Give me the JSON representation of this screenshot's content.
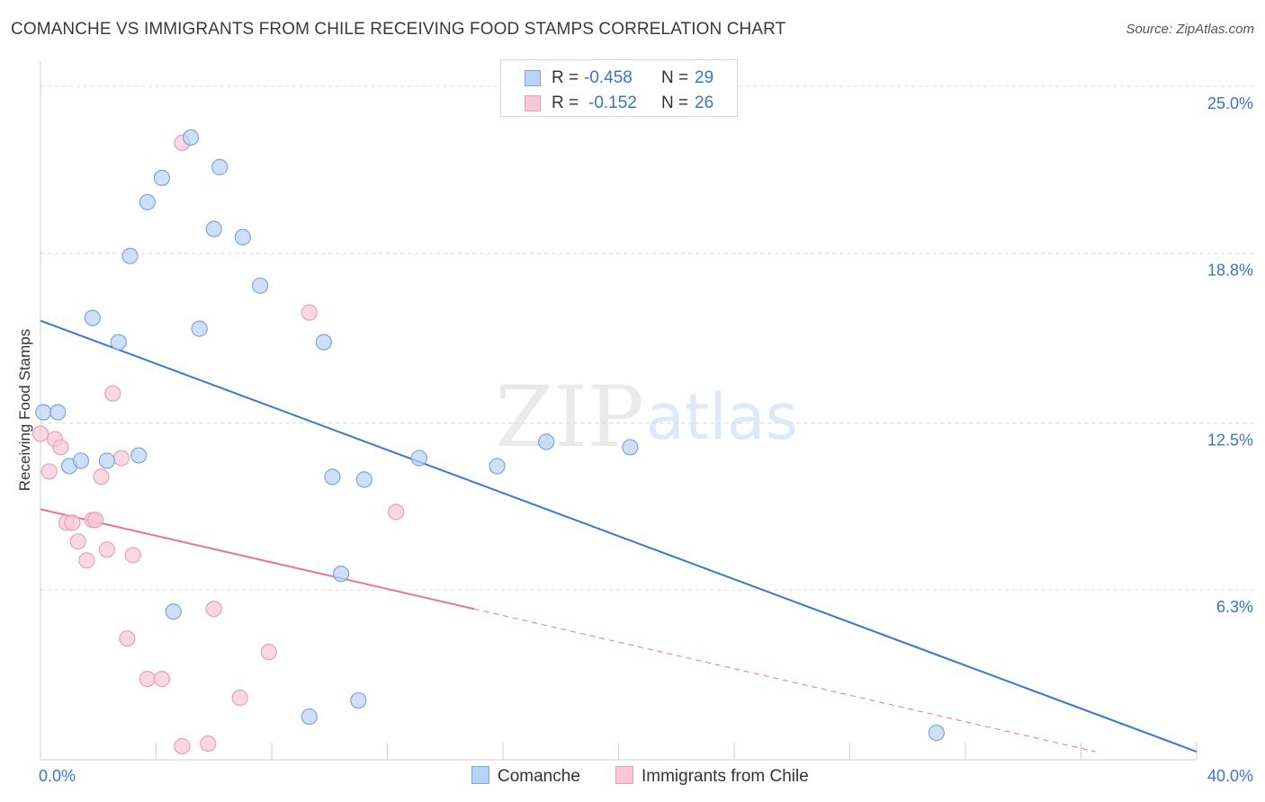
{
  "header": {
    "title": "COMANCHE VS IMMIGRANTS FROM CHILE RECEIVING FOOD STAMPS CORRELATION CHART",
    "source": "Source: ZipAtlas.com"
  },
  "watermark": {
    "zip": "ZIP",
    "atlas": "atlas"
  },
  "legend": {
    "items": [
      {
        "r_label": "R =",
        "r_value": "-0.458",
        "n_label": "N =",
        "n_value": "29"
      },
      {
        "r_label": "R =",
        "r_value": "-0.152",
        "n_label": "N =",
        "n_value": "26"
      }
    ]
  },
  "bottom_legend": {
    "series_a": "Comanche",
    "series_b": "Immigrants from Chile"
  },
  "colors": {
    "comanche_fill": "#b8d3f5",
    "comanche_stroke": "#7aa6de",
    "comanche_line": "#3a78d4",
    "chile_fill": "#f8c7d6",
    "chile_stroke": "#eba0b8",
    "chile_line": "#e8739a",
    "tick_label": "#3a74c8",
    "grid": "#dcdcdc"
  },
  "chart_data": {
    "type": "scatter",
    "title": "COMANCHE VS IMMIGRANTS FROM CHILE RECEIVING FOOD STAMPS CORRELATION CHART",
    "xlabel": "",
    "ylabel": "Receiving Food Stamps",
    "xlim": [
      0,
      40
    ],
    "ylim": [
      0,
      25.6
    ],
    "x_tick_labels": [
      {
        "value": 0,
        "label": "0.0%"
      },
      {
        "value": 40,
        "label": "40.0%"
      }
    ],
    "y_ticks": [
      {
        "value": 6.3,
        "label": "6.3%"
      },
      {
        "value": 12.5,
        "label": "12.5%"
      },
      {
        "value": 18.8,
        "label": "18.8%"
      },
      {
        "value": 25.0,
        "label": "25.0%"
      }
    ],
    "grid": true,
    "legend_position": "top-center",
    "series": [
      {
        "name": "Comanche",
        "r": -0.458,
        "n": 29,
        "points": [
          [
            0.1,
            12.9
          ],
          [
            0.6,
            12.9
          ],
          [
            1.0,
            10.9
          ],
          [
            1.4,
            11.1
          ],
          [
            1.8,
            16.4
          ],
          [
            2.3,
            11.1
          ],
          [
            2.7,
            15.5
          ],
          [
            3.1,
            18.7
          ],
          [
            3.4,
            11.3
          ],
          [
            3.7,
            20.7
          ],
          [
            4.2,
            21.6
          ],
          [
            4.6,
            5.5
          ],
          [
            5.2,
            23.1
          ],
          [
            5.5,
            16.0
          ],
          [
            6.0,
            19.7
          ],
          [
            6.2,
            22.0
          ],
          [
            7.0,
            19.4
          ],
          [
            7.6,
            17.6
          ],
          [
            9.3,
            1.6
          ],
          [
            9.8,
            15.5
          ],
          [
            10.1,
            10.5
          ],
          [
            10.4,
            6.9
          ],
          [
            11.0,
            2.2
          ],
          [
            11.2,
            10.4
          ],
          [
            13.1,
            11.2
          ],
          [
            15.8,
            10.9
          ],
          [
            17.5,
            11.8
          ],
          [
            20.4,
            11.6
          ],
          [
            31.0,
            1.0
          ]
        ],
        "trend": {
          "x": [
            0,
            40
          ],
          "y": [
            16.3,
            0.3
          ]
        }
      },
      {
        "name": "Immigrants from Chile",
        "r": -0.152,
        "n": 26,
        "points": [
          [
            0.0,
            12.1
          ],
          [
            0.3,
            10.7
          ],
          [
            0.5,
            11.9
          ],
          [
            0.7,
            11.6
          ],
          [
            0.9,
            8.8
          ],
          [
            1.1,
            8.8
          ],
          [
            1.3,
            8.1
          ],
          [
            1.6,
            7.4
          ],
          [
            1.8,
            8.9
          ],
          [
            1.9,
            8.9
          ],
          [
            2.1,
            10.5
          ],
          [
            2.3,
            7.8
          ],
          [
            2.5,
            13.6
          ],
          [
            2.8,
            11.2
          ],
          [
            3.0,
            4.5
          ],
          [
            3.2,
            7.6
          ],
          [
            3.7,
            3.0
          ],
          [
            4.2,
            3.0
          ],
          [
            4.9,
            0.5
          ],
          [
            4.9,
            22.9
          ],
          [
            5.8,
            0.6
          ],
          [
            6.0,
            5.6
          ],
          [
            6.9,
            2.3
          ],
          [
            7.9,
            4.0
          ],
          [
            9.3,
            16.6
          ],
          [
            12.3,
            9.2
          ]
        ],
        "trend": {
          "x": [
            0,
            15
          ],
          "y": [
            9.3,
            5.6
          ]
        },
        "trend_extension": {
          "x": [
            15,
            36.5
          ],
          "y": [
            5.6,
            0.3
          ]
        }
      }
    ]
  }
}
